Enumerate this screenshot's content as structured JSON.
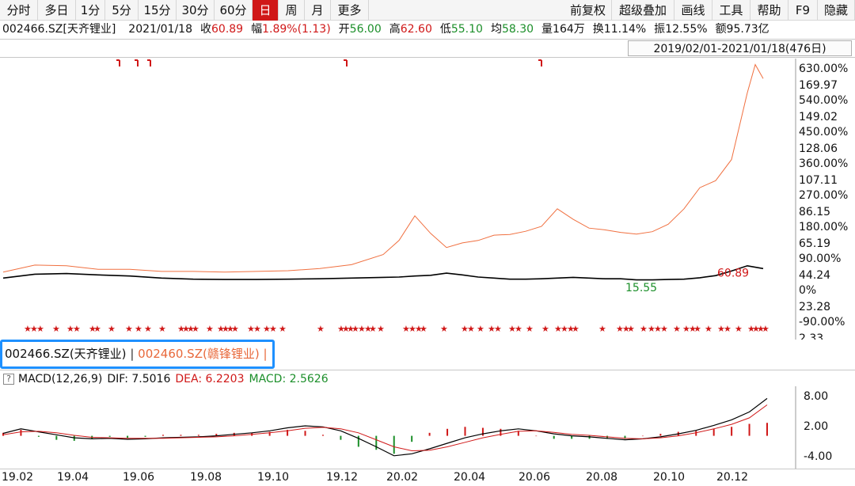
{
  "toolbar": {
    "left": [
      {
        "label": "分时",
        "w": 48
      },
      {
        "label": "多日",
        "w": 48
      },
      {
        "label": "1分",
        "w": 37
      },
      {
        "label": "5分",
        "w": 42
      },
      {
        "label": "15分",
        "w": 48
      },
      {
        "label": "30分",
        "w": 48
      },
      {
        "label": "60分",
        "w": 48
      },
      {
        "label": "日",
        "w": 33,
        "active": true
      },
      {
        "label": "周",
        "w": 33
      },
      {
        "label": "月",
        "w": 33
      },
      {
        "label": "更多",
        "w": 48
      }
    ],
    "right": [
      {
        "label": "前复权",
        "w": 60
      },
      {
        "label": "超级叠加",
        "w": 79
      },
      {
        "label": "画线",
        "w": 48
      },
      {
        "label": "工具",
        "w": 48
      },
      {
        "label": "帮助",
        "w": 48
      },
      {
        "label": "F9",
        "w": 37
      },
      {
        "label": "隐藏",
        "w": 47
      }
    ]
  },
  "info": {
    "code": "002466.SZ[天齐锂业]",
    "date": "2021/01/18",
    "close_label": "收",
    "close": "60.89",
    "change_label": "幅",
    "change": "1.89%(1.13)",
    "open_label": "开",
    "open": "56.00",
    "high_label": "高",
    "high": "62.60",
    "low_label": "低",
    "low": "55.10",
    "avg_label": "均",
    "avg": "58.30",
    "volume": "量164万",
    "turnover": "换11.14%",
    "amplitude": "振12.55%",
    "amount": "额95.73亿"
  },
  "range": "2019/02/01-2021/01/18(476日)",
  "legend": {
    "stock1": "002466.SZ(天齐锂业)",
    "sep": "|",
    "stock2": "002460.SZ(赣锋锂业)",
    "sep2": "|"
  },
  "macd": {
    "help": "?",
    "name": "MACD(12,26,9)",
    "dif": "DIF: 7.5016",
    "dea": "DEA: 6.2203",
    "macd": "MACD: 2.5626"
  },
  "colors": {
    "black_series": "#000000",
    "orange_series": "#f07040",
    "up": "#d01818",
    "down": "#1c8f2a",
    "accent": "#1e90ff"
  },
  "chart_data": [
    {
      "type": "line",
      "title": "",
      "x_ticks": [
        "19.02",
        "19.04",
        "19.06",
        "19.08",
        "19.10",
        "19.12",
        "20.02",
        "20.04",
        "20.06",
        "20.08",
        "20.10",
        "20.12"
      ],
      "y_labels_price": [
        "169.97",
        "149.02",
        "128.06",
        "107.11",
        "86.15",
        "65.19",
        "44.24",
        "23.28",
        "2.33"
      ],
      "y_labels_percent": [
        "630.00%",
        "540.00%",
        "450.00%",
        "360.00%",
        "270.00%",
        "180.00%",
        "90.00%",
        "0%",
        "-90.00%"
      ],
      "annotations": [
        "60.89",
        "15.55"
      ],
      "series": [
        {
          "name": "002466.SZ(天齐锂业)",
          "color": "#000000",
          "points": [
            [
              0,
              33
            ],
            [
              4,
              44
            ],
            [
              8,
              46
            ],
            [
              12,
              42
            ],
            [
              16,
              39
            ],
            [
              20,
              33
            ],
            [
              24,
              30
            ],
            [
              28,
              29
            ],
            [
              32,
              29
            ],
            [
              36,
              30
            ],
            [
              40,
              31
            ],
            [
              44,
              33
            ],
            [
              48,
              35
            ],
            [
              50,
              36
            ],
            [
              52,
              39
            ],
            [
              54,
              41
            ],
            [
              56,
              47
            ],
            [
              58,
              42
            ],
            [
              60,
              36
            ],
            [
              62,
              33
            ],
            [
              64,
              30
            ],
            [
              66,
              30
            ],
            [
              68,
              31
            ],
            [
              70,
              33
            ],
            [
              72,
              35
            ],
            [
              74,
              33
            ],
            [
              76,
              31
            ],
            [
              78,
              31
            ],
            [
              80,
              28
            ],
            [
              82,
              28
            ],
            [
              84,
              29
            ],
            [
              86,
              30
            ],
            [
              88,
              34
            ],
            [
              90,
              40
            ],
            [
              92,
              53
            ],
            [
              94,
              68
            ],
            [
              96,
              60
            ]
          ]
        },
        {
          "name": "002460.SZ(赣锋锂业)",
          "color": "#f07040",
          "points": [
            [
              0,
              50
            ],
            [
              4,
              70
            ],
            [
              8,
              68
            ],
            [
              12,
              58
            ],
            [
              16,
              58
            ],
            [
              20,
              52
            ],
            [
              24,
              52
            ],
            [
              28,
              50
            ],
            [
              32,
              52
            ],
            [
              36,
              54
            ],
            [
              40,
              60
            ],
            [
              44,
              71
            ],
            [
              48,
              100
            ],
            [
              50,
              140
            ],
            [
              52,
              210
            ],
            [
              54,
              160
            ],
            [
              56,
              120
            ],
            [
              58,
              133
            ],
            [
              60,
              140
            ],
            [
              62,
              155
            ],
            [
              64,
              157
            ],
            [
              66,
              166
            ],
            [
              68,
              180
            ],
            [
              70,
              230
            ],
            [
              72,
              200
            ],
            [
              74,
              175
            ],
            [
              76,
              170
            ],
            [
              78,
              163
            ],
            [
              80,
              158
            ],
            [
              82,
              165
            ],
            [
              84,
              186
            ],
            [
              86,
              230
            ],
            [
              88,
              290
            ],
            [
              90,
              310
            ],
            [
              92,
              370
            ],
            [
              94,
              560
            ],
            [
              95,
              640
            ],
            [
              96,
              600
            ]
          ]
        }
      ]
    },
    {
      "type": "bar",
      "title": "MACD(12,26,9)",
      "y_labels": [
        "8.00",
        "2.00",
        "-4.00"
      ],
      "dif": [
        0.5,
        1.4,
        0.8,
        0.2,
        -0.4,
        -0.6,
        -0.5,
        -0.7,
        -0.6,
        -0.4,
        -0.3,
        -0.2,
        0.0,
        0.3,
        0.6,
        1.0,
        1.6,
        2.0,
        1.8,
        1.0,
        -0.5,
        -2.2,
        -4.0,
        -3.6,
        -2.6,
        -1.5,
        -0.4,
        0.4,
        1.0,
        1.4,
        1.0,
        0.4,
        0.0,
        -0.2,
        -0.5,
        -0.8,
        -0.6,
        -0.2,
        0.4,
        1.1,
        2.1,
        3.2,
        4.8,
        7.5
      ],
      "dea": [
        0.2,
        0.8,
        0.9,
        0.6,
        0.1,
        -0.3,
        -0.4,
        -0.5,
        -0.5,
        -0.5,
        -0.4,
        -0.3,
        -0.2,
        0.0,
        0.3,
        0.6,
        1.0,
        1.5,
        1.7,
        1.4,
        0.6,
        -0.8,
        -2.2,
        -3.0,
        -2.9,
        -2.2,
        -1.3,
        -0.4,
        0.3,
        0.9,
        1.0,
        0.7,
        0.3,
        0.1,
        -0.2,
        -0.5,
        -0.6,
        -0.4,
        0.0,
        0.6,
        1.4,
        2.3,
        3.6,
        6.2
      ]
    }
  ]
}
